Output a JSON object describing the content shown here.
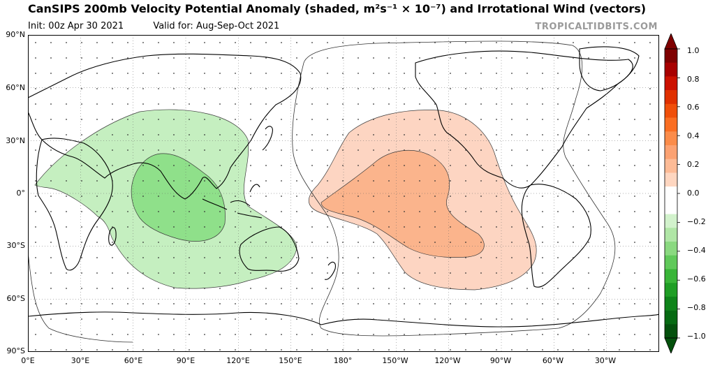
{
  "title": "CanSIPS 200mb Velocity Potential Anomaly (shaded, m²s⁻¹ × 10⁻⁷) and Irrotational Wind (vectors)",
  "init": "Init: 00z Apr 30 2021",
  "valid": "Valid for: Aug-Sep-Oct 2021",
  "credit": "TROPICALTIDBITS.COM",
  "lat_labels": [
    "90°N",
    "60°N",
    "30°N",
    "0°",
    "30°S",
    "60°S",
    "90°S"
  ],
  "lon_labels": [
    "0°E",
    "30°E",
    "60°E",
    "90°E",
    "120°E",
    "150°E",
    "180°",
    "150°W",
    "120°W",
    "90°W",
    "60°W",
    "30°W"
  ],
  "colorbar": {
    "ticks": [
      "1.0",
      "0.8",
      "0.6",
      "0.4",
      "0.2",
      "0.0",
      "−0.2",
      "−0.4",
      "−0.6",
      "−0.8",
      "−1.0"
    ],
    "colors": [
      "#7f0000",
      "#a80000",
      "#cc1100",
      "#e03000",
      "#f04f0a",
      "#fa6e22",
      "#fb8c4a",
      "#fca272",
      "#fdbb96",
      "#fed6c0",
      "#ffffff",
      "#ffffff",
      "#d2f2cc",
      "#b0e6a6",
      "#8ad980",
      "#60c95a",
      "#39b538",
      "#1f9e25",
      "#0f841a",
      "#066a12",
      "#03500c"
    ]
  },
  "map_data": {
    "projection": "plate-carree",
    "lon_range": [
      0,
      360
    ],
    "lat_range": [
      -90,
      90
    ],
    "positive_anomaly_region": "central/eastern Pacific",
    "negative_anomaly_region": "Indian Ocean / Maritime Continent"
  }
}
